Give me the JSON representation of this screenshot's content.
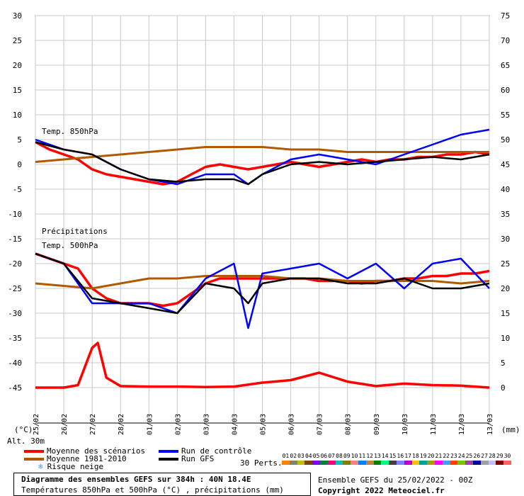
{
  "chart_data": {
    "type": "line",
    "title": "Diagramme des ensembles GEFS sur 384h : 40N 18.4E",
    "subtitle": "Températures 850hPa et 500hPa (°C) , précipitations (mm)",
    "left_axis": {
      "unit": "(°C)",
      "ticks": [
        30,
        25,
        20,
        15,
        10,
        5,
        0,
        -5,
        -10,
        -15,
        -20,
        -25,
        -30,
        -35,
        -40,
        -45
      ],
      "ylim": [
        -45,
        30
      ]
    },
    "right_axis": {
      "unit": "(mm)",
      "ticks": [
        75,
        70,
        65,
        60,
        55,
        50,
        45,
        40,
        35,
        30,
        25,
        20,
        15,
        10,
        5,
        0
      ],
      "ylim": [
        0,
        75
      ]
    },
    "x_dates": [
      "25/02",
      "26/02",
      "27/02",
      "28/02",
      "01/03",
      "02/03",
      "03/03",
      "04/03",
      "05/03",
      "06/03",
      "07/03",
      "08/03",
      "09/03",
      "10/03",
      "11/03",
      "12/03",
      "13/03"
    ],
    "panel_labels": {
      "t850": "Temp. 850hPa",
      "precip": "Précipitations",
      "t500": "Temp. 500hPa"
    },
    "alt_label": "Alt. 30m",
    "series": [
      {
        "name": "Moyenne des scénarios",
        "color": "#ff0000",
        "group": "t850",
        "x": [
          0,
          0.5,
          1,
          1.5,
          2,
          2.5,
          3,
          3.5,
          4,
          4.5,
          5,
          5.5,
          6,
          6.5,
          7,
          7.5,
          8,
          8.5,
          9,
          9.5,
          10,
          10.5,
          11,
          11.5,
          12,
          12.5,
          13,
          13.5,
          14,
          14.5,
          15,
          15.5,
          16
        ],
        "values": [
          4.5,
          3,
          2,
          1,
          -1,
          -2,
          -2.5,
          -3,
          -3.5,
          -4,
          -3.5,
          -2,
          -0.5,
          0,
          -0.5,
          -1,
          -0.5,
          0,
          0.5,
          0,
          -0.5,
          0,
          0.5,
          1,
          0.5,
          1,
          1,
          1.5,
          1.5,
          2,
          2,
          2.5,
          2
        ]
      },
      {
        "name": "Moyenne 1981-2010",
        "color": "#b05a00",
        "group": "t850",
        "x": [
          0,
          1,
          2,
          3,
          4,
          5,
          6,
          7,
          8,
          9,
          10,
          11,
          12,
          13,
          14,
          15,
          16
        ],
        "values": [
          0.5,
          1,
          1.5,
          2,
          2.5,
          3,
          3.5,
          3.5,
          3.5,
          3,
          3,
          2.5,
          2.5,
          2.5,
          2.5,
          2.5,
          2.5
        ]
      },
      {
        "name": "Run de contrôle",
        "color": "#0000ff",
        "group": "t850",
        "x": [
          0,
          1,
          2,
          3,
          4,
          5,
          6,
          7,
          7.5,
          8,
          9,
          10,
          11,
          12,
          13,
          14,
          15,
          16
        ],
        "values": [
          5,
          3,
          2,
          -1,
          -3,
          -4,
          -2,
          -2,
          -4,
          -2,
          1,
          2,
          1,
          0,
          2,
          4,
          6,
          7
        ]
      },
      {
        "name": "Run GFS",
        "color": "#000000",
        "group": "t850",
        "x": [
          0,
          1,
          2,
          3,
          4,
          5,
          6,
          7,
          7.5,
          8,
          9,
          10,
          11,
          12,
          13,
          14,
          15,
          16
        ],
        "values": [
          4.5,
          3,
          2,
          -1,
          -3,
          -3.5,
          -3,
          -3,
          -4,
          -2,
          0,
          0.5,
          0,
          0.5,
          1,
          1.5,
          1,
          2
        ]
      },
      {
        "name": "Moyenne des scénarios",
        "color": "#ff0000",
        "group": "t500",
        "x": [
          0,
          0.5,
          1,
          1.5,
          2,
          2.5,
          3,
          3.5,
          4,
          4.5,
          5,
          5.5,
          6,
          6.5,
          7,
          7.5,
          8,
          8.5,
          9,
          9.5,
          10,
          10.5,
          11,
          11.5,
          12,
          12.5,
          13,
          13.5,
          14,
          14.5,
          15,
          15.5,
          16
        ],
        "values": [
          -18,
          -19,
          -20,
          -21,
          -25,
          -27,
          -28,
          -28,
          -28,
          -28.5,
          -28,
          -26,
          -24,
          -23,
          -23,
          -23,
          -23,
          -23,
          -23,
          -23,
          -23.5,
          -23.5,
          -23.5,
          -24,
          -23.5,
          -23.5,
          -23,
          -23,
          -22.5,
          -22.5,
          -22,
          -22,
          -21.5
        ]
      },
      {
        "name": "Moyenne 1981-2010",
        "color": "#b05a00",
        "group": "t500",
        "x": [
          0,
          1,
          2,
          3,
          4,
          5,
          6,
          7,
          8,
          9,
          10,
          11,
          12,
          13,
          14,
          15,
          16
        ],
        "values": [
          -24,
          -24.5,
          -25,
          -24,
          -23,
          -23,
          -22.5,
          -22.5,
          -22.5,
          -23,
          -23,
          -23.5,
          -23.5,
          -23.5,
          -23.5,
          -24,
          -23.5
        ]
      },
      {
        "name": "Run de contrôle",
        "color": "#0000ff",
        "group": "t500",
        "x": [
          0,
          1,
          2,
          3,
          4,
          5,
          6,
          7,
          7.5,
          8,
          9,
          10,
          11,
          12,
          13,
          14,
          15,
          16
        ],
        "values": [
          -18,
          -20,
          -28,
          -28,
          -28,
          -30,
          -23,
          -20,
          -33,
          -22,
          -21,
          -20,
          -23,
          -20,
          -25,
          -20,
          -19,
          -25
        ]
      },
      {
        "name": "Run GFS",
        "color": "#000000",
        "group": "t500",
        "x": [
          0,
          1,
          2,
          3,
          4,
          5,
          6,
          7,
          7.5,
          8,
          9,
          10,
          11,
          12,
          13,
          14,
          15,
          16
        ],
        "values": [
          -18,
          -20,
          -27,
          -28,
          -29,
          -30,
          -24,
          -25,
          -28,
          -24,
          -23,
          -23,
          -24,
          -24,
          -23,
          -25,
          -25,
          -24
        ]
      },
      {
        "name": "Moyenne des scénarios",
        "color": "#ff0000",
        "group": "precip",
        "x": [
          0,
          1,
          1.5,
          2,
          2.2,
          2.5,
          3,
          4,
          5,
          6,
          7,
          8,
          9,
          10,
          11,
          12,
          13,
          14,
          15,
          16
        ],
        "values": [
          0,
          0,
          0.5,
          8,
          9,
          2,
          0.3,
          0.2,
          0.2,
          0.1,
          0.2,
          1,
          1.5,
          3,
          1.2,
          0.3,
          0.8,
          0.5,
          0.4,
          0
        ]
      }
    ],
    "legend": [
      "Moyenne des scénarios",
      "Moyenne 1981-2010",
      "Run de contrôle",
      "Run GFS",
      "Risque neige"
    ],
    "perturbations": {
      "label": "30 Perts.",
      "numbers": [
        "01",
        "02",
        "03",
        "04",
        "05",
        "06",
        "07",
        "08",
        "09",
        "10",
        "11",
        "12",
        "13",
        "14",
        "15",
        "16",
        "17",
        "18",
        "19",
        "20",
        "21",
        "22",
        "23",
        "24",
        "25",
        "26",
        "27",
        "28",
        "29",
        "30"
      ],
      "colors": [
        "#ff8000",
        "#808080",
        "#c0c000",
        "#804000",
        "#8000ff",
        "#008040",
        "#ff0080",
        "#00c0c0",
        "#808000",
        "#ff8080",
        "#0080ff",
        "#c08040",
        "#008000",
        "#00ff80",
        "#404040",
        "#8080ff",
        "#c000c0",
        "#ffc000",
        "#00a0a0",
        "#a0a000",
        "#ff00ff",
        "#40a0ff",
        "#ff4000",
        "#80c000",
        "#a040a0",
        "#0000a0",
        "#a0a0a0",
        "#c0c0ff",
        "#800000",
        "#ff6060"
      ]
    },
    "grid": true
  },
  "footer": {
    "title": "Diagramme des ensembles GEFS sur 384h : 40N 18.4E",
    "subtitle": "Températures 850hPa et 500hPa (°C) , précipitations (mm)",
    "run": "Ensemble GEFS du 25/02/2022 - 00Z",
    "copyright": "Copyright 2022 Meteociel.fr"
  }
}
